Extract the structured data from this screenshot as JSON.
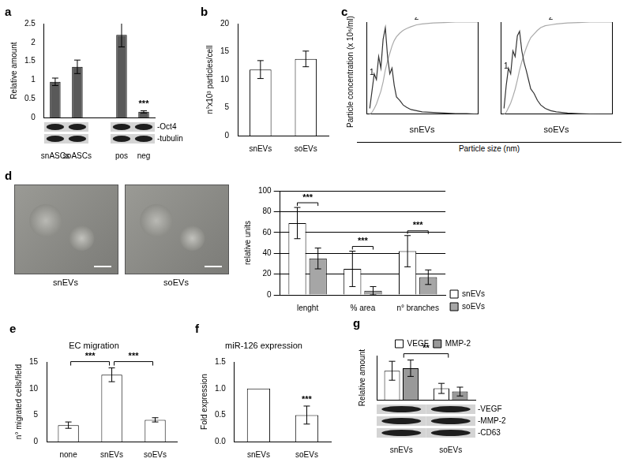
{
  "chart_data": [
    {
      "panel": "a",
      "type": "bar",
      "ylabel": "Relative amount",
      "categories": [
        "snASCs",
        "soASCs",
        null,
        "pos",
        "neg"
      ],
      "values": [
        0.95,
        1.35,
        null,
        2.2,
        0.15
      ],
      "errors": [
        0.1,
        0.18,
        null,
        0.32,
        0.03
      ],
      "color": "#595959",
      "ylim": [
        0,
        2.5
      ],
      "yticks": [
        0,
        0.5,
        1,
        1.5,
        2,
        2.5
      ],
      "grid": false,
      "blots": [
        "-Oct4",
        "-tubulin"
      ],
      "annotations": [
        {
          "text": "***",
          "category": "neg"
        }
      ]
    },
    {
      "panel": "b",
      "type": "bar",
      "ylabel": "n°x10³ particles/cell",
      "categories": [
        "snEVs",
        "soEVs"
      ],
      "values": [
        11.8,
        13.7
      ],
      "errors": [
        1.6,
        1.4
      ],
      "color": "#ffffff",
      "ylim": [
        0,
        20
      ],
      "yticks": [
        0,
        5,
        10,
        15,
        20
      ],
      "grid": false
    },
    {
      "panel": "c",
      "type": "line",
      "ylabel": "Particle concentration (x 10⁶/ml)",
      "xlabel": "Particle size (nm)",
      "tick_labels": false,
      "xlim": [
        0,
        1000
      ],
      "ylim": [
        0,
        8
      ],
      "y2lim": [
        0,
        100
      ],
      "x": [
        30,
        50,
        70,
        90,
        110,
        130,
        150,
        170,
        190,
        210,
        230,
        250,
        270,
        300,
        330,
        360,
        400,
        450,
        500,
        600,
        700,
        800,
        900,
        1000
      ],
      "charts": [
        {
          "subtitle": "snEVs",
          "series": [
            {
              "name": "1",
              "color": "#333333",
              "values": [
                0.5,
                2,
                3.5,
                3,
                5,
                4,
                6.5,
                7.5,
                5,
                3.5,
                4,
                2.5,
                1.5,
                1.2,
                0.8,
                0.6,
                0.4,
                0.3,
                0.2,
                0.15,
                0.1,
                0.05,
                0.05,
                0
              ]
            },
            {
              "name": "2",
              "color": "#aaaaaa",
              "axis": "y2",
              "values": [
                0,
                2,
                6,
                11,
                18,
                25,
                35,
                48,
                58,
                66,
                74,
                80,
                84,
                88,
                91,
                93,
                95,
                97,
                98,
                99,
                99.5,
                100,
                100,
                100
              ]
            }
          ]
        },
        {
          "subtitle": "soEVs",
          "series": [
            {
              "name": "1",
              "color": "#333333",
              "values": [
                0.5,
                2.5,
                4,
                3.5,
                5.5,
                5,
                6.8,
                7.2,
                5.5,
                4.5,
                3.8,
                3,
                2.2,
                1.8,
                1.2,
                0.8,
                0.5,
                0.3,
                0.2,
                0.1,
                0.05,
                0.02,
                0,
                0
              ]
            },
            {
              "name": "2",
              "color": "#aaaaaa",
              "axis": "y2",
              "values": [
                0,
                2,
                7,
                12,
                19,
                27,
                37,
                48,
                57,
                65,
                72,
                78,
                83,
                87,
                91,
                94,
                96,
                97,
                98,
                99,
                99.5,
                100,
                100,
                100
              ]
            }
          ]
        }
      ]
    },
    {
      "type": "bar",
      "ylabel": "relative units",
      "categories": [
        "lenght",
        "% area",
        "n° branches"
      ],
      "series": [
        {
          "name": "snEVs",
          "color": "#ffffff",
          "values": [
            69,
            25,
            42
          ],
          "errors": [
            15,
            17,
            15
          ]
        },
        {
          "name": "soEVs",
          "color": "#a6a6a6",
          "values": [
            35,
            4,
            17
          ],
          "errors": [
            10,
            4,
            7
          ]
        }
      ],
      "ylim": [
        0,
        100
      ],
      "yticks": [
        0,
        20,
        40,
        60,
        80,
        100
      ],
      "grid": true,
      "legend": "right",
      "annotations": [
        {
          "text": "***",
          "category": "lenght"
        },
        {
          "text": "***",
          "category": "% area"
        },
        {
          "text": "***",
          "category": "n° branches"
        }
      ]
    },
    {
      "panel": "e",
      "type": "bar",
      "title": "EC migration",
      "ylabel": "n° migrated cells/field",
      "categories": [
        "none",
        "snEVs",
        "soEVs"
      ],
      "values": [
        3.1,
        12.6,
        4.1
      ],
      "errors": [
        0.6,
        1.3,
        0.4
      ],
      "color": "#ffffff",
      "ylim": [
        0,
        15
      ],
      "yticks": [
        0,
        5,
        10,
        15
      ],
      "grid": false,
      "annotations": [
        {
          "text": "***",
          "from": "none",
          "to": "snEVs"
        },
        {
          "text": "***",
          "from": "snEVs",
          "to": "soEVs"
        }
      ]
    },
    {
      "panel": "f",
      "type": "bar",
      "title": "miR-126 expression",
      "ylabel": "Fold expression",
      "categories": [
        "snEVs",
        "soEVs"
      ],
      "values": [
        1,
        0.5
      ],
      "errors": [
        null,
        0.17
      ],
      "color": "#ffffff",
      "ylim": [
        0,
        1.5
      ],
      "yticks": [
        {
          "value": 0,
          "label": "0.0"
        },
        {
          "value": 0.5,
          "label": "0.5"
        },
        {
          "value": 1,
          "label": "1.0"
        },
        {
          "value": 1.5,
          "label": "1.5"
        }
      ],
      "grid": false,
      "annotations": [
        {
          "text": "***",
          "category": "soEVs"
        }
      ]
    },
    {
      "panel": "g",
      "type": "bar",
      "ylabel": "Relative amount",
      "categories": [
        "snEVs",
        "soEVs"
      ],
      "series": [
        {
          "name": "VEGF",
          "color": "#ffffff",
          "values": [
            4.6,
            1.8
          ],
          "errors": [
            1.5,
            0.8
          ]
        },
        {
          "name": "MMP-2",
          "color": "#999999",
          "values": [
            5.0,
            1.3
          ],
          "errors": [
            1.3,
            0.7
          ]
        }
      ],
      "ylim": [
        0,
        7
      ],
      "tick_labels": "x",
      "grid": false,
      "legend": "top",
      "blots": [
        "-VEGF",
        "-MMP-2",
        "-CD63"
      ],
      "annotations": [
        {
          "text": "**",
          "from": "snEVs",
          "to": "soEVs"
        }
      ]
    }
  ],
  "images": [
    {
      "panel": "d",
      "labels": [
        "snEVs",
        "soEVs"
      ]
    }
  ]
}
